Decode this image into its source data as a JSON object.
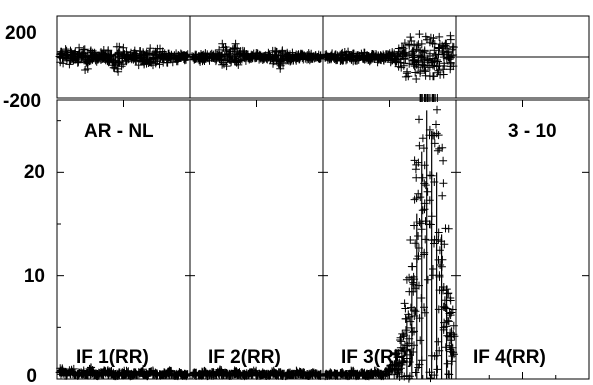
{
  "chart_data": {
    "type": "scatter",
    "marker": "plus",
    "color": "#000000",
    "top_panel": {
      "ylim": [
        -200,
        200
      ],
      "ytick_labels": [
        "200",
        "-200"
      ]
    },
    "main_panel": {
      "ylim": [
        0,
        27
      ],
      "yticks": [
        0,
        10,
        20
      ],
      "ytick_labels": [
        "0",
        "10",
        "20"
      ]
    },
    "title_left": "AR - NL",
    "title_right": "3 - 10",
    "subplots": [
      {
        "label": "IF 1(RR)",
        "phase_spread": [
          55,
          70,
          48,
          40,
          62,
          85,
          60,
          45,
          38,
          52,
          78,
          95,
          70,
          55,
          42,
          36,
          48,
          65,
          88,
          72,
          50,
          40,
          34,
          30,
          28,
          26
        ],
        "amplitude": [
          0.6,
          0.3,
          0.5,
          0.2,
          0.4,
          0.3,
          0.6,
          0.2,
          0.3,
          0.5,
          0.4,
          0.2,
          0.3,
          0.4,
          0.2,
          0.3,
          0.5,
          0.2,
          0.4,
          0.3,
          0.2,
          0.3,
          0.4,
          0.2,
          0.3,
          0.2
        ]
      },
      {
        "label": "IF 2(RR)",
        "phase_spread": [
          28,
          30,
          32,
          26,
          24,
          40,
          90,
          105,
          85,
          60,
          42,
          30,
          26,
          24,
          22,
          30,
          62,
          80,
          55,
          40,
          30,
          26,
          24,
          22,
          20,
          24
        ],
        "amplitude": [
          0.3,
          0.2,
          0.4,
          0.2,
          0.3,
          0.5,
          0.3,
          0.2,
          0.4,
          0.3,
          0.2,
          0.3,
          0.4,
          0.2,
          0.3,
          0.2,
          0.4,
          0.3,
          0.2,
          0.3,
          0.2,
          0.4,
          0.3,
          0.2,
          0.3,
          0.2
        ]
      },
      {
        "label": "IF 3(RR)",
        "phase_spread": [
          24,
          22,
          26,
          30,
          34,
          28,
          24,
          26,
          30,
          36,
          30,
          28,
          34,
          45,
          70,
          110,
          150,
          170,
          180,
          185,
          190,
          190,
          185,
          175,
          160,
          140
        ],
        "amplitude": [
          0.2,
          0.3,
          0.2,
          0.3,
          0.2,
          0.4,
          0.2,
          0.3,
          0.2,
          0.3,
          0.4,
          0.2,
          0.5,
          0.8,
          1.5,
          3,
          6,
          10,
          16,
          22,
          26,
          24,
          20,
          14,
          9,
          5
        ]
      },
      {
        "label": "IF 4(RR)",
        "phase_spread": [],
        "amplitude": []
      }
    ]
  }
}
